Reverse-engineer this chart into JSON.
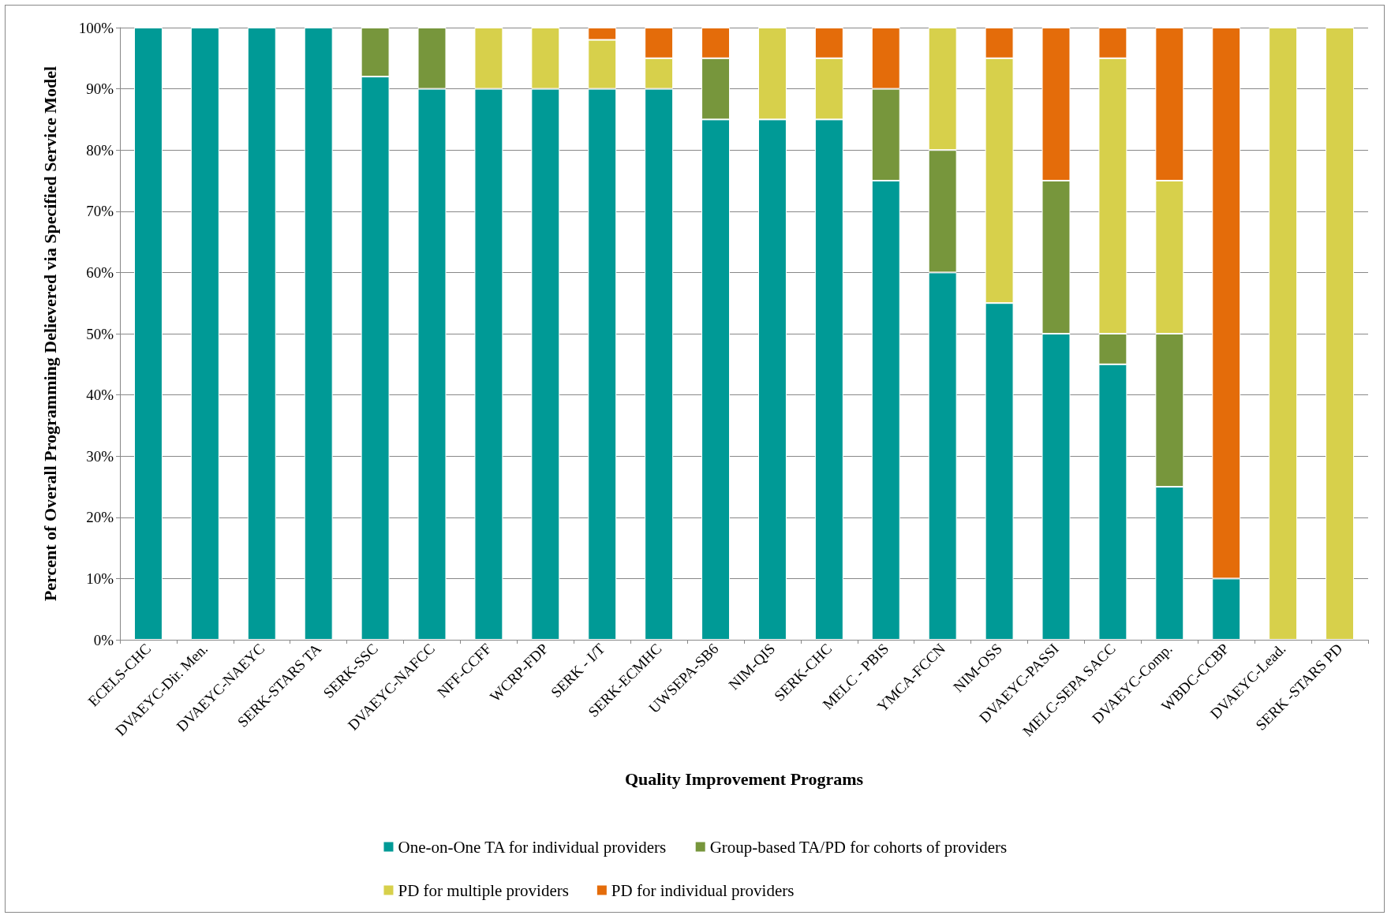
{
  "chart_data": {
    "type": "bar",
    "stacked": true,
    "xlabel": "Quality Improvement Programs",
    "ylabel": "Percent of Overall Programming Delievered via Specified Service Model",
    "categories": [
      "ECELS-CHC",
      "DVAEYC-Dir. Men.",
      "DVAEYC-NAEYC",
      "SERK-STARS TA",
      "SERK-SSC",
      "DVAEYC-NAFCC",
      "NFF-CCFF",
      "WCRP-FDP",
      "SERK - I/T",
      "SERK-ECMHC",
      "UWSEPA-SB6",
      "NIM-QIS",
      "SERK-CHC",
      "MELC - PBIS",
      "YMCA-FCCN",
      "NIM-OSS",
      "DVAEYC-PASSI",
      "MELC-SEPA SACC",
      "DVAEYC-Comp.",
      "WBDC-CCBP",
      "DVAEYC-Lead.",
      "SERK -STARS PD"
    ],
    "series": [
      {
        "name": "One-on-One TA for individual providers",
        "color": "#009a96",
        "values": [
          100,
          100,
          100,
          100,
          92,
          90,
          90,
          90,
          90,
          90,
          85,
          85,
          85,
          75,
          60,
          55,
          50,
          45,
          25,
          10,
          0,
          0
        ]
      },
      {
        "name": "Group-based TA/PD for cohorts of providers",
        "color": "#77963c",
        "values": [
          0,
          0,
          0,
          0,
          8,
          10,
          0,
          0,
          0,
          0,
          10,
          0,
          0,
          15,
          20,
          0,
          25,
          5,
          25,
          0,
          0,
          0
        ]
      },
      {
        "name": "PD for multiple providers",
        "color": "#d7d04b",
        "values": [
          0,
          0,
          0,
          0,
          0,
          0,
          10,
          10,
          8,
          5,
          0,
          15,
          10,
          0,
          20,
          40,
          0,
          45,
          25,
          0,
          100,
          100
        ]
      },
      {
        "name": "PD for individual providers",
        "color": "#e46c0a",
        "values": [
          0,
          0,
          0,
          0,
          0,
          0,
          0,
          0,
          2,
          5,
          5,
          0,
          5,
          10,
          0,
          5,
          25,
          5,
          25,
          90,
          0,
          0
        ]
      }
    ],
    "ylim": [
      0,
      100
    ],
    "yticks": [
      {
        "value": 0,
        "label": "0%"
      },
      {
        "value": 10,
        "label": "10%"
      },
      {
        "value": 20,
        "label": "20%"
      },
      {
        "value": 30,
        "label": "30%"
      },
      {
        "value": 40,
        "label": "40%"
      },
      {
        "value": 50,
        "label": "50%"
      },
      {
        "value": 60,
        "label": "60%"
      },
      {
        "value": 70,
        "label": "70%"
      },
      {
        "value": 80,
        "label": "80%"
      },
      {
        "value": 90,
        "label": "90%"
      },
      {
        "value": 100,
        "label": "100%"
      }
    ],
    "grid": "y",
    "legend": "bottom"
  }
}
